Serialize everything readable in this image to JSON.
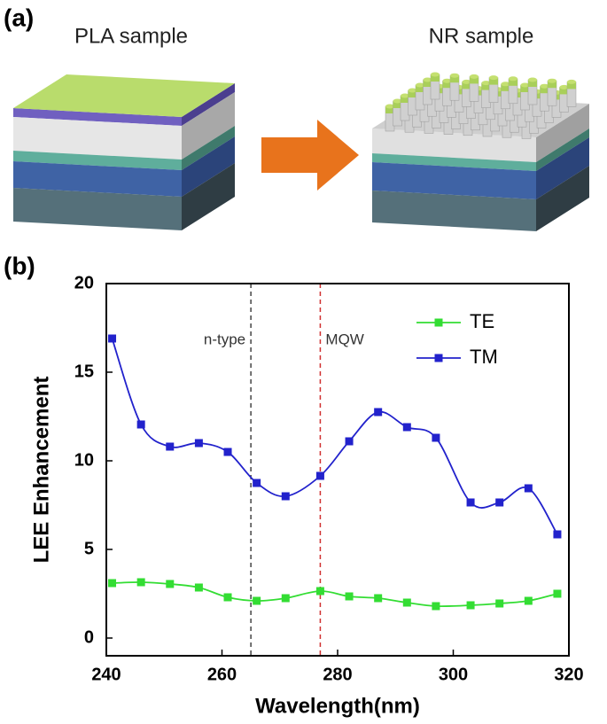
{
  "panel_a": {
    "label": "(a)",
    "left_caption": "PLA sample",
    "right_caption": "NR sample"
  },
  "chart_data": {
    "type": "line",
    "panel_label": "(b)",
    "x_label": "Wavelength(nm)",
    "y_label": "LEE  Enhancement",
    "x": [
      241,
      246,
      251,
      256,
      261,
      266,
      271,
      277,
      282,
      287,
      292,
      297,
      303,
      308,
      313,
      318
    ],
    "series": [
      {
        "name": "TE",
        "color": "#33dd33",
        "values": [
          3.1,
          3.15,
          3.05,
          2.85,
          2.3,
          2.1,
          2.25,
          2.65,
          2.35,
          2.25,
          2.0,
          1.8,
          1.85,
          1.95,
          2.1,
          2.5
        ]
      },
      {
        "name": "TM",
        "color": "#2222cc",
        "values": [
          16.9,
          12.05,
          10.8,
          11.0,
          10.5,
          8.75,
          8.0,
          9.15,
          11.1,
          12.75,
          11.9,
          11.3,
          7.65,
          7.65,
          8.45,
          5.85
        ]
      }
    ],
    "vlines": [
      {
        "x": 265,
        "label": "n-type",
        "color": "#444444"
      },
      {
        "x": 277,
        "label": "MQW",
        "color": "#d03030"
      }
    ],
    "xlim": [
      240,
      320
    ],
    "xticks": [
      240,
      260,
      280,
      300,
      320
    ],
    "ylim": [
      -1,
      20
    ],
    "yticks": [
      0,
      5,
      10,
      15,
      20
    ],
    "legend": "upper right"
  }
}
